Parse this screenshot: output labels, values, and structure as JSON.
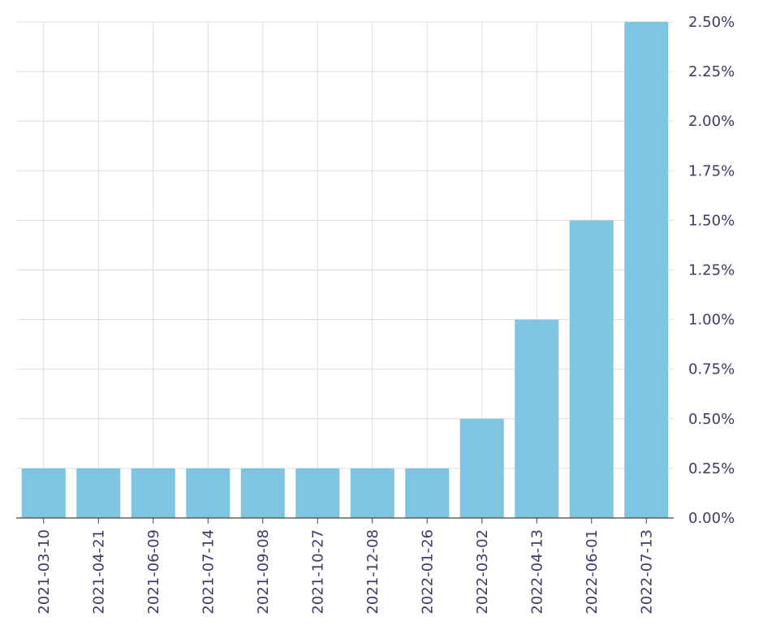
{
  "chart_data": {
    "type": "bar",
    "title": "",
    "xlabel": "",
    "ylabel": "",
    "categories": [
      "2021-03-10",
      "2021-04-21",
      "2021-06-09",
      "2021-07-14",
      "2021-09-08",
      "2021-10-27",
      "2021-12-08",
      "2022-01-26",
      "2022-03-02",
      "2022-04-13",
      "2022-06-01",
      "2022-07-13"
    ],
    "values": [
      0.25,
      0.25,
      0.25,
      0.25,
      0.25,
      0.25,
      0.25,
      0.25,
      0.5,
      1.0,
      1.5,
      2.5
    ],
    "ylim": [
      0,
      2.5
    ],
    "yticks": [
      "0.00%",
      "0.25%",
      "0.50%",
      "0.75%",
      "1.00%",
      "1.25%",
      "1.50%",
      "1.75%",
      "2.00%",
      "2.25%",
      "2.50%"
    ],
    "y_axis_side": "right",
    "grid": true,
    "colors": {
      "bar": "#7fc4e0",
      "grid": "#dcdcdc",
      "axis": "#444444",
      "tick_text": "#3d3a66"
    }
  }
}
